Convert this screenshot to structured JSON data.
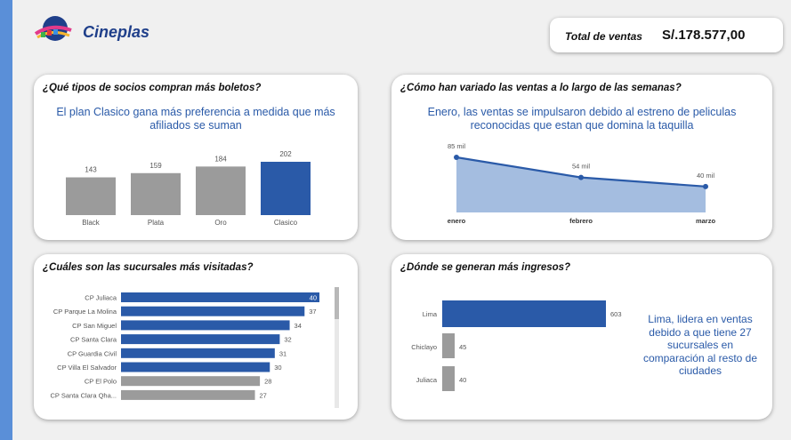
{
  "app": {
    "name": "Cineplas"
  },
  "kpi": {
    "label": "Total de ventas",
    "value": "S/.178.577,00"
  },
  "colors": {
    "highlight": "#2a5aa8",
    "neutral": "#9b9b9b",
    "area_fill": "#a4bde0",
    "line": "#2a5aa8",
    "insight": "#2a5aa8",
    "accent_bar": "#5a8fd8"
  },
  "cards": {
    "socios": {
      "title": "¿Qué tipos de socios compran más boletos?",
      "insight": "El plan Clasico gana más preferencia a medida que más afiliados se suman"
    },
    "ventas": {
      "title": "¿Cómo han variado las ventas a lo largo de las semanas?",
      "insight": "Enero, las ventas se impulsaron debido al estreno de peliculas reconocidas que estan que domina la taquilla"
    },
    "sucursales": {
      "title": "¿Cuáles son las sucursales más visitadas?"
    },
    "ingresos": {
      "title": "¿Dónde se generan más ingresos?",
      "insight": "Lima, lidera en ventas debido a que tiene 27 sucursales en comparación al resto de ciudades"
    }
  },
  "chart_data": [
    {
      "id": "socios",
      "type": "bar",
      "categories": [
        "Black",
        "Plata",
        "Oro",
        "Clasico"
      ],
      "values": [
        143,
        159,
        184,
        202
      ],
      "value_labels": [
        "143",
        "159",
        "184",
        "202"
      ],
      "highlight": [
        "Clasico"
      ],
      "ylim": [
        0,
        202
      ]
    },
    {
      "id": "ventas",
      "type": "area",
      "categories": [
        "enero",
        "febrero",
        "marzo"
      ],
      "values": [
        85000,
        54000,
        40000
      ],
      "value_labels": [
        "85 mil",
        "54 mil",
        "40 mil"
      ],
      "ylim": [
        0,
        85000
      ]
    },
    {
      "id": "sucursales",
      "type": "bar",
      "orientation": "horizontal",
      "categories": [
        "CP Juliaca",
        "CP Parque La Molina",
        "CP San Miguel",
        "CP Santa Clara",
        "CP Guardia Civil",
        "CP Villa El Salvador",
        "CP El Polo",
        "CP Santa Clara Qha..."
      ],
      "values": [
        40,
        37,
        34,
        32,
        31,
        30,
        28,
        27
      ],
      "value_labels": [
        "40",
        "37",
        "34",
        "32",
        "31",
        "30",
        "28",
        "27"
      ],
      "highlighted": [
        true,
        true,
        true,
        true,
        true,
        true,
        false,
        false
      ],
      "xlim": [
        0,
        40
      ]
    },
    {
      "id": "ingresos",
      "type": "bar",
      "orientation": "horizontal",
      "categories": [
        "Lima",
        "Chiclayo",
        "Juliaca"
      ],
      "values": [
        603,
        45,
        40
      ],
      "value_labels": [
        "603",
        "45",
        "40"
      ],
      "highlight": [
        "Lima"
      ],
      "xlim": [
        0,
        603
      ]
    }
  ]
}
